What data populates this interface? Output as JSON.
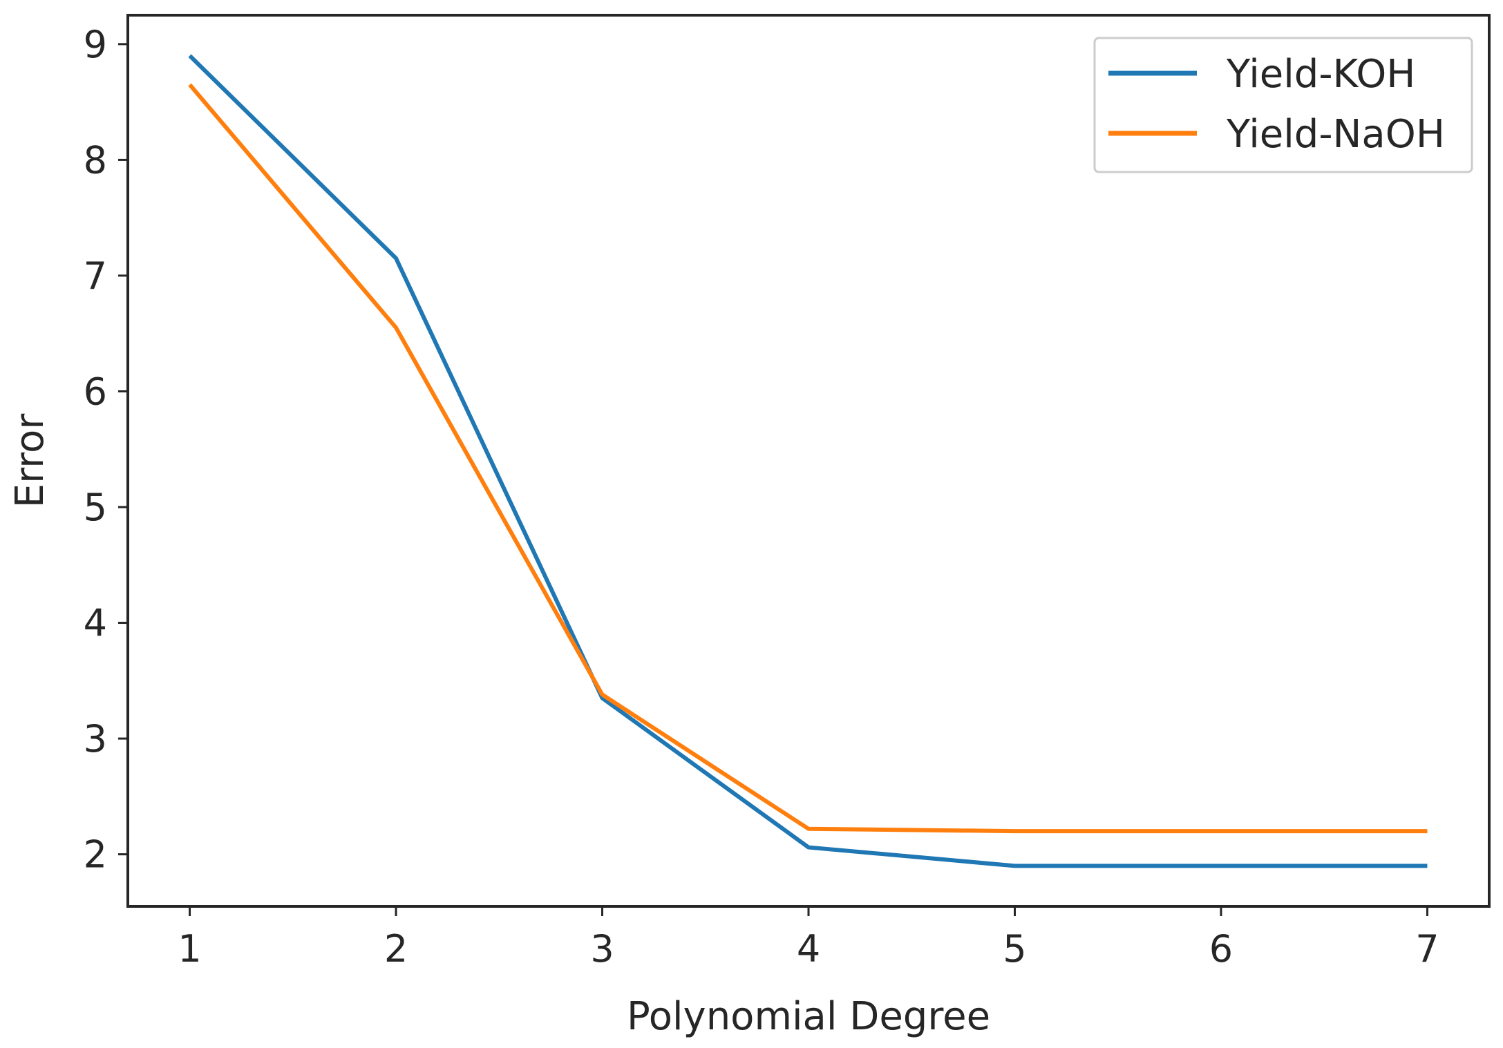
{
  "chart_data": {
    "type": "line",
    "title": "",
    "xlabel": "Polynomial Degree",
    "ylabel": "Error",
    "x": [
      1,
      2,
      3,
      4,
      5,
      6,
      7
    ],
    "xticks": [
      "1",
      "2",
      "3",
      "4",
      "5",
      "6",
      "7"
    ],
    "yticks": [
      "2",
      "3",
      "4",
      "5",
      "6",
      "7",
      "8",
      "9"
    ],
    "xlim": [
      0.7,
      7.3
    ],
    "ylim": [
      1.55,
      9.25
    ],
    "grid": false,
    "legend_position": "top-right",
    "series": [
      {
        "name": "Yield-KOH",
        "color": "#1f77b4",
        "values": [
          8.9,
          7.15,
          3.35,
          2.06,
          1.9,
          1.9,
          1.9
        ]
      },
      {
        "name": "Yield-NaOH",
        "color": "#ff7f0e",
        "values": [
          8.65,
          6.55,
          3.38,
          2.22,
          2.2,
          2.2,
          2.2
        ]
      }
    ]
  }
}
